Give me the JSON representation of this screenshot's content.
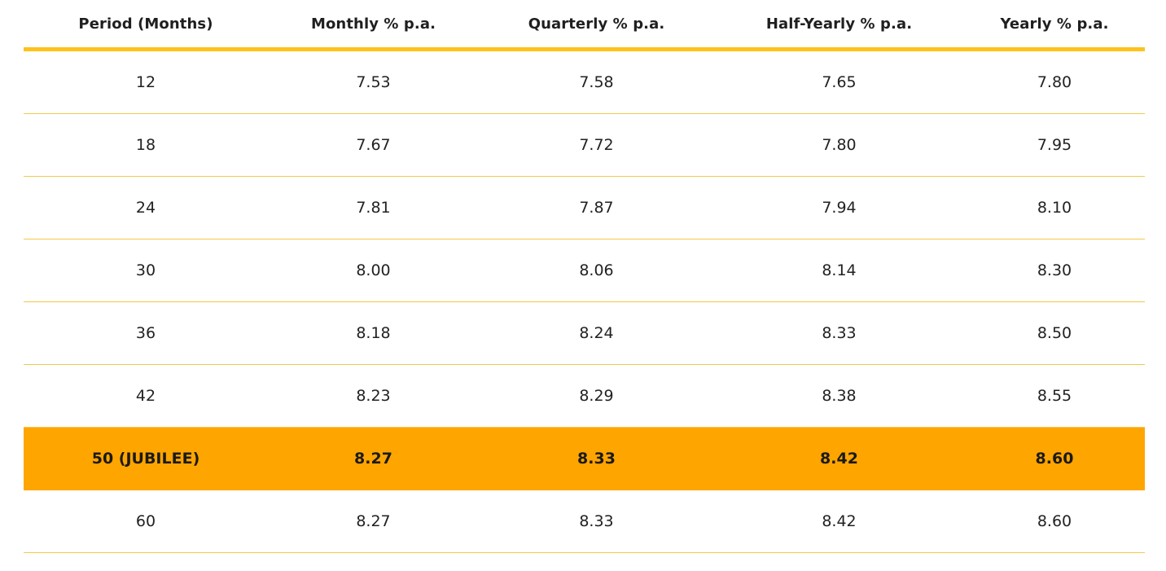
{
  "table": {
    "headers": [
      "Period (Months)",
      "Monthly % p.a.",
      "Quarterly % p.a.",
      "Half-Yearly % p.a.",
      "Yearly % p.a."
    ],
    "highlight_row_index": 6,
    "rows": [
      [
        "12",
        "7.53",
        "7.58",
        "7.65",
        "7.80"
      ],
      [
        "18",
        "7.67",
        "7.72",
        "7.80",
        "7.95"
      ],
      [
        "24",
        "7.81",
        "7.87",
        "7.94",
        "8.10"
      ],
      [
        "30",
        "8.00",
        "8.06",
        "8.14",
        "8.30"
      ],
      [
        "36",
        "8.18",
        "8.24",
        "8.33",
        "8.50"
      ],
      [
        "42",
        "8.23",
        "8.29",
        "8.38",
        "8.55"
      ],
      [
        "50 (JUBILEE)",
        "8.27",
        "8.33",
        "8.42",
        "8.60"
      ],
      [
        "60",
        "8.27",
        "8.33",
        "8.42",
        "8.60"
      ]
    ]
  },
  "colors": {
    "accent": "#ffc21c",
    "highlight": "#ffa500",
    "row_divider": "#f2c94c"
  }
}
